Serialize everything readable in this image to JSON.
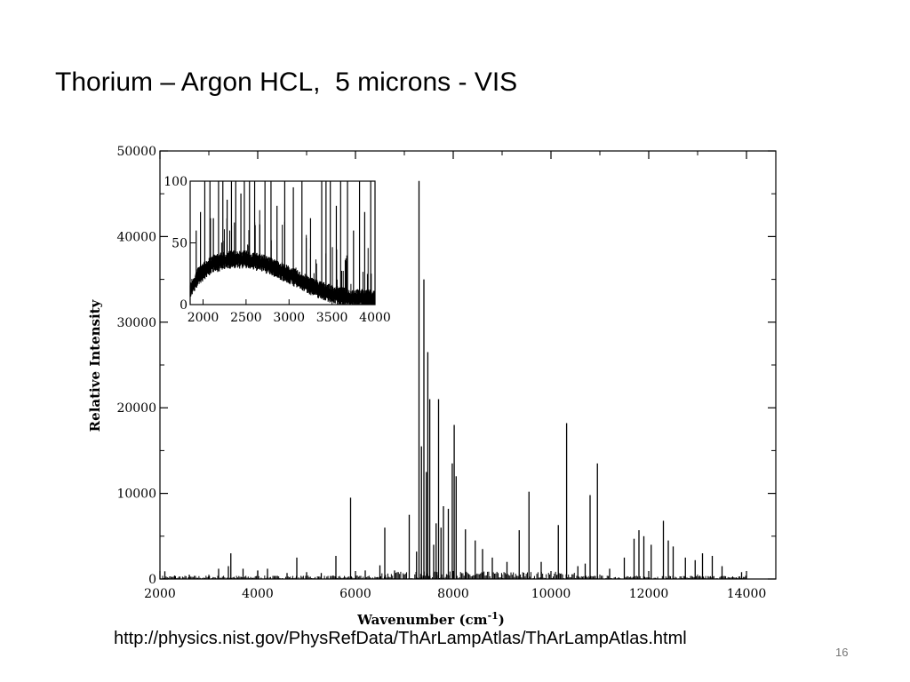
{
  "slide": {
    "title": "Thorium – Argon HCL,  5 microns - VIS",
    "source_url": "http://physics.nist.gov/PhysRefData/ThArLampAtlas/ThArLampAtlas.html",
    "page_number": "16"
  },
  "chart_data": [
    {
      "type": "line",
      "xlabel": "Wavenumber (cm",
      "xlabel_superscript": "-1",
      "xlabel_suffix": ")",
      "ylabel": "Relative Intensity",
      "xlim": [
        2000,
        14600
      ],
      "ylim": [
        0,
        50000
      ],
      "x_ticks": [
        2000,
        4000,
        6000,
        8000,
        10000,
        12000,
        14000
      ],
      "y_ticks": [
        0,
        10000,
        20000,
        30000,
        40000,
        50000
      ],
      "grid": false,
      "series": [
        {
          "lines": [
            [
              2100,
              900
            ],
            [
              2300,
              400
            ],
            [
              2600,
              500
            ],
            [
              3200,
              1200
            ],
            [
              3400,
              1500
            ],
            [
              3450,
              3000
            ],
            [
              3700,
              1200
            ],
            [
              4000,
              1000
            ],
            [
              4200,
              1200
            ],
            [
              4600,
              700
            ],
            [
              4800,
              2500
            ],
            [
              5000,
              800
            ],
            [
              5300,
              700
            ],
            [
              5600,
              2700
            ],
            [
              5900,
              9500
            ],
            [
              6200,
              1000
            ],
            [
              6500,
              1600
            ],
            [
              6600,
              6000
            ],
            [
              6800,
              1000
            ],
            [
              7100,
              7500
            ],
            [
              7250,
              3200
            ],
            [
              7300,
              46500
            ],
            [
              7350,
              15500
            ],
            [
              7400,
              35000
            ],
            [
              7450,
              12500
            ],
            [
              7480,
              26500
            ],
            [
              7520,
              21000
            ],
            [
              7600,
              4000
            ],
            [
              7650,
              6500
            ],
            [
              7700,
              21000
            ],
            [
              7750,
              6000
            ],
            [
              7800,
              8500
            ],
            [
              7900,
              8200
            ],
            [
              7980,
              13500
            ],
            [
              8020,
              18000
            ],
            [
              8060,
              12000
            ],
            [
              8250,
              5800
            ],
            [
              8450,
              4500
            ],
            [
              8600,
              3500
            ],
            [
              8800,
              2500
            ],
            [
              9100,
              2000
            ],
            [
              9350,
              5700
            ],
            [
              9550,
              10200
            ],
            [
              9800,
              2000
            ],
            [
              10150,
              6300
            ],
            [
              10320,
              18200
            ],
            [
              10550,
              1500
            ],
            [
              10700,
              1800
            ],
            [
              10800,
              9800
            ],
            [
              10950,
              13500
            ],
            [
              11200,
              1200
            ],
            [
              11500,
              2500
            ],
            [
              11700,
              4700
            ],
            [
              11800,
              5700
            ],
            [
              11900,
              5000
            ],
            [
              12050,
              4000
            ],
            [
              12300,
              6800
            ],
            [
              12400,
              4500
            ],
            [
              12500,
              3800
            ],
            [
              12750,
              2500
            ],
            [
              12950,
              2200
            ],
            [
              13100,
              3000
            ],
            [
              13300,
              2700
            ],
            [
              13500,
              1500
            ],
            [
              13900,
              800
            ]
          ]
        }
      ],
      "baseline_noise": 400
    },
    {
      "type": "line",
      "inset": true,
      "xlim": [
        1850,
        4000
      ],
      "ylim": [
        0,
        100
      ],
      "x_ticks": [
        2000,
        2500,
        3000,
        3500,
        4000
      ],
      "y_ticks": [
        0,
        50,
        100
      ],
      "continuum": [
        [
          1850,
          12
        ],
        [
          1950,
          24
        ],
        [
          2100,
          33
        ],
        [
          2300,
          37
        ],
        [
          2500,
          37
        ],
        [
          2700,
          34
        ],
        [
          2900,
          28
        ],
        [
          3100,
          21
        ],
        [
          3300,
          14
        ],
        [
          3500,
          9
        ],
        [
          3700,
          6
        ],
        [
          4000,
          5
        ]
      ],
      "spike_tops": [
        [
          1920,
          60
        ],
        [
          1970,
          75
        ],
        [
          2020,
          100
        ],
        [
          2080,
          100
        ],
        [
          2120,
          70
        ],
        [
          2180,
          100
        ],
        [
          2230,
          100
        ],
        [
          2280,
          85
        ],
        [
          2330,
          100
        ],
        [
          2380,
          100
        ],
        [
          2440,
          90
        ],
        [
          2480,
          100
        ],
        [
          2540,
          100
        ],
        [
          2600,
          100
        ],
        [
          2660,
          65
        ],
        [
          2720,
          100
        ],
        [
          2790,
          100
        ],
        [
          2860,
          80
        ],
        [
          2950,
          100
        ],
        [
          3050,
          95
        ],
        [
          3150,
          100
        ],
        [
          3250,
          70
        ],
        [
          3380,
          100
        ],
        [
          3430,
          100
        ],
        [
          3480,
          100
        ],
        [
          3550,
          80
        ],
        [
          3600,
          100
        ],
        [
          3680,
          100
        ],
        [
          3750,
          60
        ],
        [
          3820,
          100
        ],
        [
          3880,
          75
        ],
        [
          3950,
          100
        ]
      ]
    }
  ]
}
